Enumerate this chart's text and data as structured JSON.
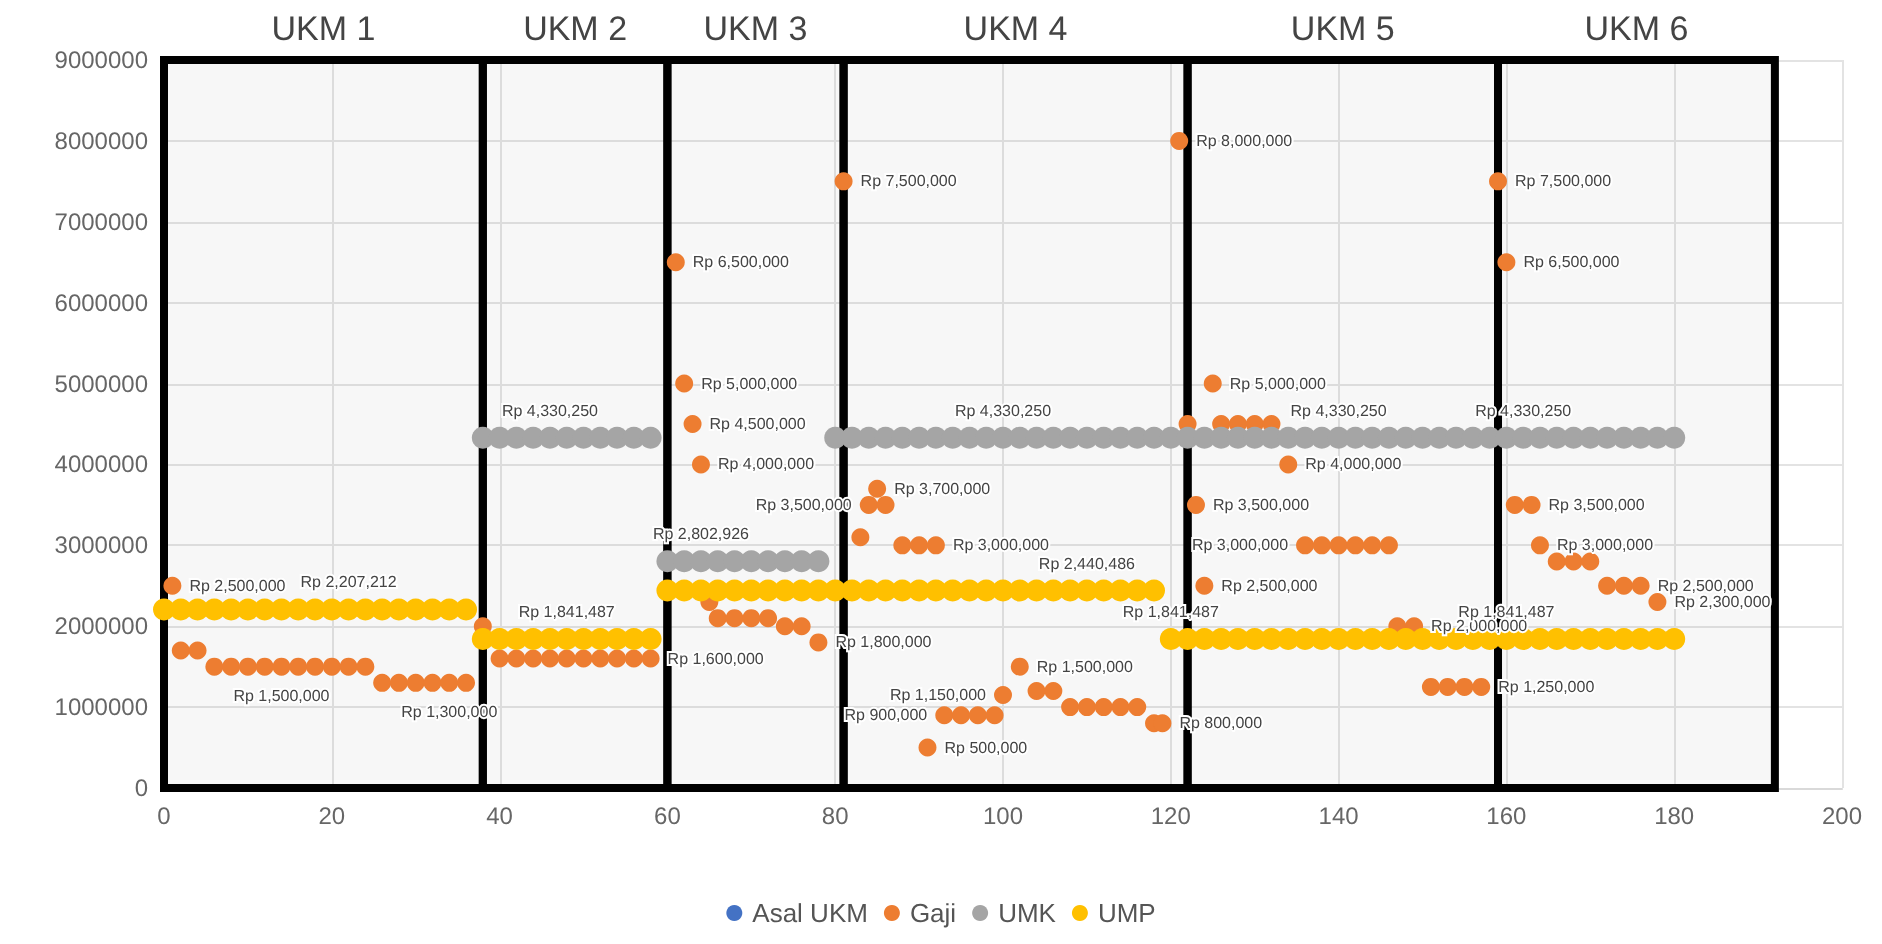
{
  "chart_data": {
    "type": "scatter",
    "xlim": [
      0,
      200
    ],
    "xticks": [
      0,
      20,
      40,
      60,
      80,
      100,
      120,
      140,
      160,
      180,
      200
    ],
    "ylim": [
      0,
      9000000
    ],
    "yticks": [
      0,
      1000000,
      2000000,
      3000000,
      4000000,
      5000000,
      6000000,
      7000000,
      8000000,
      9000000
    ],
    "grid": true,
    "legend": "bottom",
    "marker": "circle",
    "bands": [
      {
        "axis": "x",
        "from": 0,
        "to": 38,
        "label": "UKM 1"
      },
      {
        "axis": "x",
        "from": 38,
        "to": 60,
        "label": "UKM 2"
      },
      {
        "axis": "x",
        "from": 60,
        "to": 81,
        "label": "UKM 3"
      },
      {
        "axis": "x",
        "from": 81,
        "to": 122,
        "label": "UKM 4"
      },
      {
        "axis": "x",
        "from": 122,
        "to": 159,
        "label": "UKM 5"
      },
      {
        "axis": "x",
        "from": 159,
        "to": 192,
        "label": "UKM 6"
      }
    ],
    "series": [
      {
        "name": "Asal UKM",
        "color": "#4472c4"
      },
      {
        "name": "Gaji",
        "color": "#ed7d31",
        "x": [
          1,
          2,
          4,
          6,
          8,
          10,
          12,
          14,
          16,
          18,
          20,
          22,
          24,
          26,
          28,
          30,
          32,
          34,
          36,
          38,
          40,
          42,
          44,
          46,
          48,
          50,
          52,
          54,
          56,
          58,
          61,
          62,
          63,
          64,
          65,
          66,
          68,
          70,
          72,
          74,
          76,
          78,
          81,
          83,
          84,
          85,
          86,
          88,
          90,
          91,
          92,
          93,
          95,
          97,
          99,
          100,
          102,
          104,
          106,
          108,
          110,
          112,
          114,
          116,
          118,
          119,
          121,
          122,
          123,
          124,
          125,
          126,
          128,
          130,
          132,
          134,
          136,
          138,
          140,
          142,
          144,
          146,
          147,
          149,
          151,
          153,
          155,
          157,
          159,
          160,
          161,
          163,
          164,
          166,
          168,
          170,
          172,
          174,
          176,
          178
        ],
        "values": [
          2500000,
          1700000,
          1700000,
          1500000,
          1500000,
          1500000,
          1500000,
          1500000,
          1500000,
          1500000,
          1500000,
          1500000,
          1500000,
          1300000,
          1300000,
          1300000,
          1300000,
          1300000,
          1300000,
          2000000,
          1600000,
          1600000,
          1600000,
          1600000,
          1600000,
          1600000,
          1600000,
          1600000,
          1600000,
          1600000,
          6500000,
          5000000,
          4500000,
          4000000,
          2300000,
          2100000,
          2100000,
          2100000,
          2100000,
          2000000,
          2000000,
          1800000,
          7500000,
          3100000,
          3500000,
          3700000,
          3500000,
          3000000,
          3000000,
          500000,
          3000000,
          900000,
          900000,
          900000,
          900000,
          1150000,
          1500000,
          1200000,
          1200000,
          1000000,
          1000000,
          1000000,
          1000000,
          1000000,
          800000,
          800000,
          8000000,
          4500000,
          3500000,
          2500000,
          5000000,
          4500000,
          4500000,
          4500000,
          4500000,
          4000000,
          3000000,
          3000000,
          3000000,
          3000000,
          3000000,
          3000000,
          2000000,
          2000000,
          1250000,
          1250000,
          1250000,
          1250000,
          7500000,
          6500000,
          3500000,
          3500000,
          3000000,
          2800000,
          2800000,
          2800000,
          2500000,
          2500000,
          2500000,
          2300000
        ],
        "value_labels": [
          "Rp 2,500,000",
          null,
          null,
          null,
          null,
          null,
          null,
          "Rp 1,500,000",
          null,
          null,
          null,
          null,
          null,
          null,
          null,
          null,
          null,
          "Rp 1,300,000",
          null,
          null,
          null,
          null,
          null,
          null,
          null,
          null,
          null,
          null,
          null,
          "Rp 1,600,000",
          "Rp 6,500,000",
          "Rp 5,000,000",
          "Rp 4,500,000",
          "Rp 4,000,000",
          null,
          null,
          null,
          null,
          null,
          null,
          null,
          "Rp 1,800,000",
          "Rp 7,500,000",
          null,
          "Rp 3,500,000",
          "Rp 3,700,000",
          null,
          null,
          null,
          "Rp 500,000",
          "Rp 3,000,000",
          "Rp 900,000",
          null,
          null,
          null,
          "Rp 1,150,000",
          "Rp 1,500,000",
          null,
          null,
          null,
          null,
          null,
          null,
          null,
          null,
          "Rp 800,000",
          "Rp 8,000,000",
          null,
          "Rp 3,500,000",
          "Rp 2,500,000",
          "Rp 5,000,000",
          null,
          null,
          null,
          null,
          "Rp 4,000,000",
          "Rp 3,000,000",
          null,
          null,
          null,
          null,
          null,
          null,
          "Rp 2,000,000",
          null,
          null,
          null,
          "Rp 1,250,000",
          "Rp 7,500,000",
          "Rp 6,500,000",
          null,
          "Rp 3,500,000",
          "Rp 3,000,000",
          null,
          null,
          null,
          null,
          null,
          "Rp 2,500,000",
          "Rp 2,300,000"
        ]
      },
      {
        "name": "UMK",
        "color": "#a5a5a5",
        "x": [
          38,
          40,
          42,
          44,
          46,
          48,
          50,
          52,
          54,
          56,
          58,
          60,
          62,
          64,
          66,
          68,
          70,
          72,
          74,
          76,
          78,
          80,
          82,
          84,
          86,
          88,
          90,
          92,
          94,
          96,
          98,
          100,
          102,
          104,
          106,
          108,
          110,
          112,
          114,
          116,
          118,
          120,
          122,
          124,
          126,
          128,
          130,
          132,
          134,
          136,
          138,
          140,
          142,
          144,
          146,
          148,
          150,
          152,
          154,
          156,
          158,
          160,
          162,
          164,
          166,
          168,
          170,
          172,
          174,
          176,
          178,
          180
        ],
        "values": [
          4330250,
          4330250,
          4330250,
          4330250,
          4330250,
          4330250,
          4330250,
          4330250,
          4330250,
          4330250,
          4330250,
          2802926,
          2802926,
          2802926,
          2802926,
          2802926,
          2802926,
          2802926,
          2802926,
          2802926,
          2802926,
          4330250,
          4330250,
          4330250,
          4330250,
          4330250,
          4330250,
          4330250,
          4330250,
          4330250,
          4330250,
          4330250,
          4330250,
          4330250,
          4330250,
          4330250,
          4330250,
          4330250,
          4330250,
          4330250,
          4330250,
          4330250,
          4330250,
          4330250,
          4330250,
          4330250,
          4330250,
          4330250,
          4330250,
          4330250,
          4330250,
          4330250,
          4330250,
          4330250,
          4330250,
          4330250,
          4330250,
          4330250,
          4330250,
          4330250,
          4330250,
          4330250,
          4330250,
          4330250,
          4330250,
          4330250,
          4330250,
          4330250,
          4330250,
          4330250,
          4330250,
          4330250
        ],
        "value_labels": [
          null,
          null,
          null,
          null,
          "Rp 4,330,250",
          null,
          null,
          null,
          null,
          null,
          null,
          null,
          null,
          "Rp 2,802,926",
          null,
          null,
          null,
          null,
          null,
          null,
          null,
          null,
          null,
          null,
          null,
          null,
          null,
          null,
          null,
          null,
          null,
          "Rp 4,330,250",
          null,
          null,
          null,
          null,
          null,
          null,
          null,
          null,
          null,
          null,
          null,
          null,
          null,
          null,
          null,
          null,
          null,
          null,
          null,
          "Rp 4,330,250",
          null,
          null,
          null,
          null,
          null,
          null,
          null,
          null,
          null,
          null,
          "Rp 4,330,250",
          null,
          null,
          null,
          null,
          null,
          null,
          null,
          null,
          null
        ]
      },
      {
        "name": "UMP",
        "color": "#ffc000",
        "x": [
          0,
          2,
          4,
          6,
          8,
          10,
          12,
          14,
          16,
          18,
          20,
          22,
          24,
          26,
          28,
          30,
          32,
          34,
          36,
          38,
          40,
          42,
          44,
          46,
          48,
          50,
          52,
          54,
          56,
          58,
          60,
          62,
          64,
          66,
          68,
          70,
          72,
          74,
          76,
          78,
          80,
          82,
          84,
          86,
          88,
          90,
          92,
          94,
          96,
          98,
          100,
          102,
          104,
          106,
          108,
          110,
          112,
          114,
          116,
          118,
          120,
          122,
          124,
          126,
          128,
          130,
          132,
          134,
          136,
          138,
          140,
          142,
          144,
          146,
          148,
          150,
          152,
          154,
          156,
          158,
          160,
          162,
          164,
          166,
          168,
          170,
          172,
          174,
          176,
          178,
          180
        ],
        "values": [
          2207212,
          2207212,
          2207212,
          2207212,
          2207212,
          2207212,
          2207212,
          2207212,
          2207212,
          2207212,
          2207212,
          2207212,
          2207212,
          2207212,
          2207212,
          2207212,
          2207212,
          2207212,
          2207212,
          1841487,
          1841487,
          1841487,
          1841487,
          1841487,
          1841487,
          1841487,
          1841487,
          1841487,
          1841487,
          1841487,
          2440486,
          2440486,
          2440486,
          2440486,
          2440486,
          2440486,
          2440486,
          2440486,
          2440486,
          2440486,
          2440486,
          2440486,
          2440486,
          2440486,
          2440486,
          2440486,
          2440486,
          2440486,
          2440486,
          2440486,
          2440486,
          2440486,
          2440486,
          2440486,
          2440486,
          2440486,
          2440486,
          2440486,
          2440486,
          2440486,
          1841487,
          1841487,
          1841487,
          1841487,
          1841487,
          1841487,
          1841487,
          1841487,
          1841487,
          1841487,
          1841487,
          1841487,
          1841487,
          1841487,
          1841487,
          1841487,
          1841487,
          1841487,
          1841487,
          1841487,
          1841487,
          1841487,
          1841487,
          1841487,
          1841487,
          1841487,
          1841487,
          1841487,
          1841487,
          1841487,
          1841487
        ],
        "value_labels": [
          null,
          null,
          null,
          null,
          null,
          null,
          null,
          null,
          null,
          null,
          null,
          "Rp 2,207,212",
          null,
          null,
          null,
          null,
          null,
          null,
          null,
          null,
          null,
          null,
          null,
          null,
          "Rp 1,841,487",
          null,
          null,
          null,
          null,
          null,
          null,
          null,
          null,
          null,
          null,
          null,
          null,
          null,
          null,
          null,
          null,
          null,
          null,
          null,
          null,
          null,
          null,
          null,
          null,
          null,
          null,
          null,
          null,
          null,
          null,
          "Rp 2,440,486",
          null,
          null,
          null,
          null,
          "Rp 1,841,487",
          null,
          null,
          null,
          null,
          null,
          null,
          null,
          null,
          null,
          null,
          null,
          null,
          null,
          null,
          null,
          null,
          null,
          null,
          null,
          "Rp 1,841,487",
          null,
          null,
          null,
          null,
          null,
          null,
          null,
          null,
          null,
          null
        ]
      }
    ]
  }
}
